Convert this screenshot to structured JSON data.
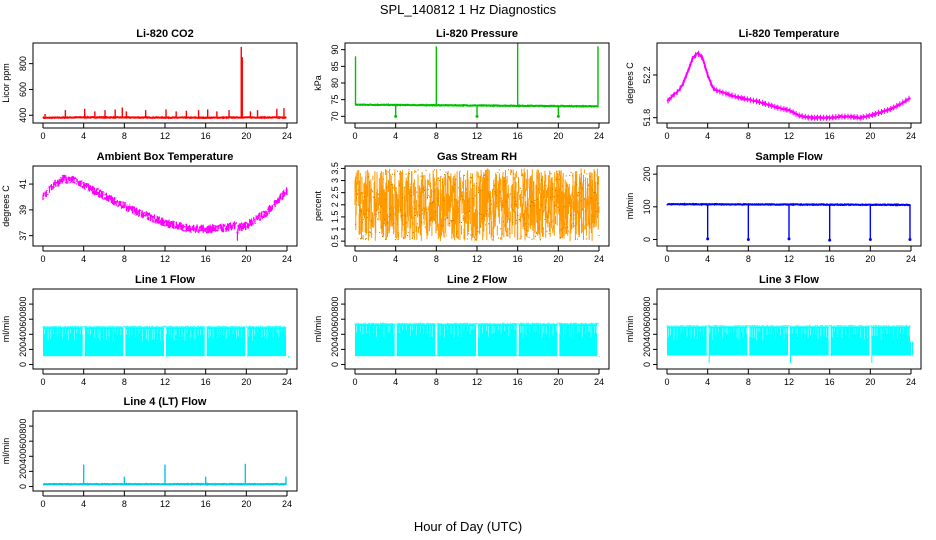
{
  "figure": {
    "title": "SPL_140812  1 Hz Diagnostics",
    "xlabel": "Hour of Day (UTC)"
  },
  "chart_data": [
    {
      "id": "co2",
      "type": "line",
      "title": "Li-820 CO2",
      "ylabel": "Licor ppm",
      "color": "#ff0000",
      "xlim": [
        0,
        24
      ],
      "xticks": [
        0,
        4,
        8,
        12,
        16,
        20,
        24
      ],
      "ylim": [
        340,
        960
      ],
      "yticks": [
        400,
        600,
        800
      ],
      "baseline": [
        [
          0,
          380
        ],
        [
          4,
          384
        ],
        [
          8,
          383
        ],
        [
          12,
          382
        ],
        [
          16,
          381
        ],
        [
          20,
          383
        ],
        [
          24,
          382
        ]
      ],
      "spikes": [
        [
          0.2,
          410
        ],
        [
          2.2,
          440
        ],
        [
          4.1,
          450
        ],
        [
          5.1,
          430
        ],
        [
          6.1,
          440
        ],
        [
          7.1,
          445
        ],
        [
          7.8,
          460
        ],
        [
          8.2,
          430
        ],
        [
          10.1,
          440
        ],
        [
          12.1,
          445
        ],
        [
          13.1,
          430
        ],
        [
          14.1,
          435
        ],
        [
          15.3,
          440
        ],
        [
          16.2,
          445
        ],
        [
          17.1,
          430
        ],
        [
          18.3,
          440
        ],
        [
          19.5,
          930
        ],
        [
          19.6,
          850
        ],
        [
          20.4,
          430
        ],
        [
          21.1,
          440
        ],
        [
          23.0,
          450
        ],
        [
          23.7,
          455
        ]
      ]
    },
    {
      "id": "pres",
      "type": "line",
      "title": "Li-820 Pressure",
      "ylabel": "kPa",
      "color": "#00c000",
      "xlim": [
        0,
        24
      ],
      "xticks": [
        0,
        4,
        8,
        12,
        16,
        20,
        24
      ],
      "ylim": [
        68,
        92
      ],
      "yticks": [
        70,
        75,
        80,
        85,
        90
      ],
      "baseline": [
        [
          0,
          73.5
        ],
        [
          24,
          73.0
        ]
      ],
      "spikes": [
        [
          0.05,
          88
        ],
        [
          8.0,
          91
        ],
        [
          16.0,
          92
        ],
        [
          23.9,
          91
        ]
      ],
      "dips": [
        [
          4.0,
          70
        ],
        [
          12.0,
          70
        ],
        [
          20.0,
          70
        ]
      ]
    },
    {
      "id": "temp",
      "type": "line",
      "title": "Li-820 Temperature",
      "ylabel": "degrees C",
      "color": "#ff00ff",
      "xlim": [
        0,
        24
      ],
      "xticks": [
        0,
        4,
        8,
        12,
        16,
        20,
        24
      ],
      "ylim": [
        51.75,
        52.5
      ],
      "yticks": [
        51.8,
        52.2
      ],
      "curve": [
        [
          0,
          51.95
        ],
        [
          0.5,
          52.0
        ],
        [
          1.0,
          52.04
        ],
        [
          1.5,
          52.1
        ],
        [
          2.0,
          52.22
        ],
        [
          2.5,
          52.35
        ],
        [
          3.0,
          52.41
        ],
        [
          3.5,
          52.36
        ],
        [
          4.0,
          52.2
        ],
        [
          4.5,
          52.08
        ],
        [
          5,
          52.05
        ],
        [
          6,
          52.02
        ],
        [
          7,
          51.99
        ],
        [
          8,
          51.97
        ],
        [
          9,
          51.95
        ],
        [
          10,
          51.92
        ],
        [
          11,
          51.89
        ],
        [
          12,
          51.87
        ],
        [
          13,
          51.82
        ],
        [
          14,
          51.8
        ],
        [
          15,
          51.8
        ],
        [
          16,
          51.8
        ],
        [
          17,
          51.81
        ],
        [
          18,
          51.81
        ],
        [
          19,
          51.8
        ],
        [
          19.5,
          51.81
        ],
        [
          20,
          51.82
        ],
        [
          21,
          51.85
        ],
        [
          22,
          51.88
        ],
        [
          23,
          51.93
        ],
        [
          24,
          51.99
        ]
      ]
    },
    {
      "id": "ambient",
      "type": "band",
      "title": "Ambient Box Temperature",
      "ylabel": "degrees C",
      "color": "#ff00ff",
      "xlim": [
        0,
        24
      ],
      "xticks": [
        0,
        4,
        8,
        12,
        16,
        20,
        24
      ],
      "ylim": [
        36.2,
        42.4
      ],
      "yticks": [
        37,
        39,
        41
      ],
      "curve": [
        [
          0,
          40.0
        ],
        [
          1,
          40.9
        ],
        [
          2,
          41.4
        ],
        [
          3,
          41.3
        ],
        [
          4,
          40.9
        ],
        [
          6,
          40.1
        ],
        [
          8,
          39.3
        ],
        [
          10,
          38.6
        ],
        [
          12,
          38.0
        ],
        [
          14,
          37.6
        ],
        [
          16,
          37.5
        ],
        [
          18,
          37.6
        ],
        [
          19,
          37.8
        ],
        [
          19.1,
          36.8
        ],
        [
          19.2,
          37.6
        ],
        [
          20,
          37.8
        ],
        [
          22,
          38.8
        ],
        [
          24,
          40.5
        ]
      ],
      "halfwidth": 0.35
    },
    {
      "id": "rh",
      "type": "band",
      "title": "Gas Stream RH",
      "ylabel": "percent",
      "color": "#ff9900",
      "xlim": [
        0,
        24
      ],
      "xticks": [
        0,
        4,
        8,
        12,
        16,
        20,
        24
      ],
      "ylim": [
        0.3,
        3.6
      ],
      "yticks": [
        0.5,
        1.0,
        1.5,
        2.0,
        2.5,
        3.0,
        3.5
      ],
      "curve": [
        [
          0,
          2.0
        ],
        [
          24,
          2.0
        ]
      ],
      "halfwidth": 1.5
    },
    {
      "id": "sample",
      "type": "line",
      "title": "Sample Flow",
      "ylabel": "ml/min",
      "color": "#0000ff",
      "xlim": [
        0,
        24
      ],
      "xticks": [
        0,
        4,
        8,
        12,
        16,
        20,
        24
      ],
      "ylim": [
        -20,
        225
      ],
      "yticks": [
        0,
        100,
        200
      ],
      "baseline": [
        [
          0,
          108
        ],
        [
          24,
          106
        ]
      ],
      "dips": [
        [
          4.0,
          2
        ],
        [
          8.0,
          0
        ],
        [
          12.0,
          2
        ],
        [
          16.0,
          -2
        ],
        [
          20.0,
          0
        ],
        [
          23.9,
          0
        ]
      ]
    },
    {
      "id": "line1",
      "type": "band",
      "title": "Line 1 Flow",
      "ylabel": "ml/min",
      "color": "#00ffff",
      "xlim": [
        0,
        24
      ],
      "xticks": [
        0,
        4,
        8,
        12,
        16,
        20,
        24
      ],
      "ylim": [
        -60,
        1000
      ],
      "yticks": [
        0,
        200,
        400,
        600,
        800
      ],
      "curve": [
        [
          0,
          300
        ],
        [
          24,
          300
        ]
      ],
      "halfwidth": 190,
      "dips": [
        [
          4.0,
          100
        ],
        [
          8.0,
          110
        ],
        [
          12.0,
          100
        ],
        [
          16.0,
          110
        ],
        [
          20.0,
          100
        ],
        [
          24.0,
          90
        ]
      ]
    },
    {
      "id": "line2",
      "type": "band",
      "title": "Line 2 Flow",
      "ylabel": "ml/min",
      "color": "#00ffff",
      "xlim": [
        0,
        24
      ],
      "xticks": [
        0,
        4,
        8,
        12,
        16,
        20,
        24
      ],
      "ylim": [
        -60,
        1000
      ],
      "yticks": [
        0,
        200,
        400,
        600,
        800
      ],
      "curve": [
        [
          0,
          320
        ],
        [
          24,
          320
        ]
      ],
      "halfwidth": 210,
      "dips": [
        [
          4.0,
          110
        ],
        [
          8.0,
          120
        ],
        [
          12.0,
          110
        ],
        [
          16.0,
          120
        ],
        [
          20.0,
          110
        ],
        [
          23.9,
          100
        ]
      ]
    },
    {
      "id": "line3",
      "type": "band",
      "title": "Line 3 Flow",
      "ylabel": "ml/min",
      "color": "#00ffff",
      "xlim": [
        0,
        24
      ],
      "xticks": [
        0,
        4,
        8,
        12,
        16,
        20,
        24
      ],
      "ylim": [
        -60,
        1000
      ],
      "yticks": [
        0,
        200,
        400,
        600,
        800
      ],
      "curve": [
        [
          0,
          310
        ],
        [
          24,
          310
        ]
      ],
      "halfwidth": 190,
      "dips": [
        [
          4.0,
          20
        ],
        [
          8.0,
          110
        ],
        [
          12.0,
          20
        ],
        [
          16.0,
          110
        ],
        [
          20.0,
          20
        ],
        [
          24.0,
          300
        ]
      ]
    },
    {
      "id": "line4",
      "type": "line",
      "title": "Line 4 (LT) Flow",
      "ylabel": "ml/min",
      "color": "#00c8e8",
      "xlim": [
        0,
        24
      ],
      "xticks": [
        0,
        4,
        8,
        12,
        16,
        20,
        24
      ],
      "ylim": [
        -60,
        1000
      ],
      "yticks": [
        0,
        200,
        400,
        600,
        800
      ],
      "baseline": [
        [
          0,
          30
        ],
        [
          24,
          30
        ]
      ],
      "spikes": [
        [
          4.0,
          290
        ],
        [
          8.0,
          130
        ],
        [
          12.0,
          290
        ],
        [
          16.0,
          130
        ],
        [
          19.9,
          300
        ],
        [
          23.9,
          130
        ]
      ]
    }
  ]
}
